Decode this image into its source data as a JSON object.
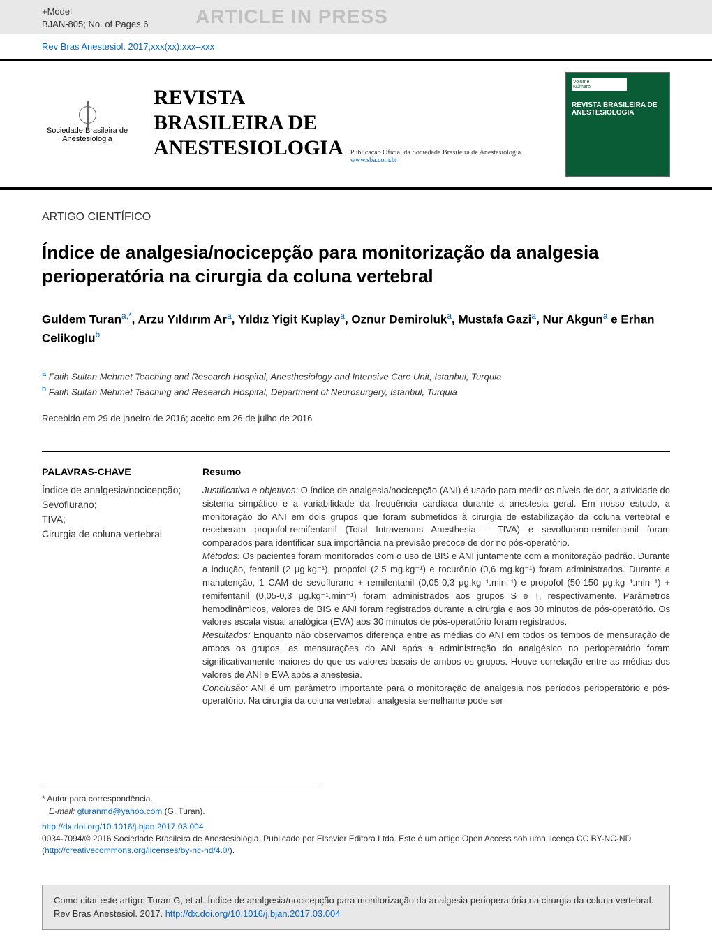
{
  "header": {
    "model_line1": "+Model",
    "model_line2": "BJAN-805;   No. of Pages 6",
    "article_in_press": "ARTICLE IN PRESS",
    "citation": "Rev Bras Anestesiol. 2017;xxx(xx):xxx–xxx",
    "society_name": "Sociedade Brasileira de Anestesiologia",
    "journal_title_line1": "REVISTA",
    "journal_title_line2": "BRASILEIRA DE",
    "journal_title_line3": "ANESTESIOLOGIA",
    "journal_subtitle": "Publicação Oficial da Sociedade Brasileira de Anestesiologia",
    "journal_url": "www.sba.com.br",
    "cover_title": "REVISTA BRASILEIRA DE ANESTESIOLOGIA"
  },
  "article": {
    "type": "ARTIGO CIENTÍFICO",
    "title": "Índice de analgesia/nocicepção para monitorização da analgesia perioperatória na cirurgia da coluna vertebral",
    "authors_html": "Guldem Turan<sup>a,*</sup>, Arzu Yıldırım Ar<sup>a</sup>, Yıldız Yigit Kuplay<sup>a</sup>, Oznur Demiroluk<sup>a</sup>, Mustafa Gazi<sup>a</sup>, Nur Akgun<sup>a</sup> e Erhan Celikoglu<sup>b</sup>",
    "affiliation_a": "Fatih Sultan Mehmet Teaching and Research Hospital, Anesthesiology and Intensive Care Unit, Istanbul, Turquia",
    "affiliation_b": "Fatih Sultan Mehmet Teaching and Research Hospital, Department of Neurosurgery, Istanbul, Turquia",
    "received": "Recebido em 29 de janeiro de 2016; aceito em 26 de julho de 2016"
  },
  "keywords": {
    "heading": "PALAVRAS-CHAVE",
    "items": "Índice de analgesia/nocicepção;\nSevoflurano;\nTIVA;\nCirurgia de coluna vertebral"
  },
  "abstract": {
    "heading": "Resumo",
    "justificativa_label": "Justificativa e objetivos:",
    "justificativa": " O índice de analgesia/nocicepção (ANI) é usado para medir os níveis de dor, a atividade do sistema simpático e a variabilidade da frequência cardíaca durante a anestesia geral. Em nosso estudo, a monitoração do ANI em dois grupos que foram submetidos à cirurgia de estabilização da coluna vertebral e receberam propofol-remifentanil (Total Intravenous Anesthesia – TIVA) e sevoflurano-remifentanil foram comparados para identificar sua importância na previsão precoce de dor no pós-operatório.",
    "metodos_label": "Métodos:",
    "metodos": " Os pacientes foram monitorados com o uso de BIS e ANI juntamente com a monitoração padrão. Durante a indução, fentanil (2 μg.kg⁻¹), propofol (2,5 mg.kg⁻¹) e rocurônio (0,6 mg.kg⁻¹) foram administrados. Durante a manutenção, 1 CAM de sevoflurano + remifentanil (0,05-0,3 μg.kg⁻¹.min⁻¹) e propofol (50-150 μg.kg⁻¹.min⁻¹) + remifentanil (0,05-0,3 μg.kg⁻¹.min⁻¹) foram administrados aos grupos S e T, respectivamente. Parâmetros hemodinâmicos, valores de BIS e ANI foram registrados durante a cirurgia e aos 30 minutos de pós-operatório. Os valores escala visual analógica (EVA) aos 30 minutos de pós-operatório foram registrados.",
    "resultados_label": "Resultados:",
    "resultados": " Enquanto não observamos diferença entre as médias do ANI em todos os tempos de mensuração de ambos os grupos, as mensurações do ANI após a administração do analgésico no perioperatório foram significativamente maiores do que os valores basais de ambos os grupos. Houve correlação entre as médias dos valores de ANI e EVA após a anestesia.",
    "conclusao_label": "Conclusão:",
    "conclusao": " ANI é um parâmetro importante para o monitoração de analgesia nos períodos perioperatório e pós-operatório. Na cirurgia da coluna vertebral, analgesia semelhante pode ser"
  },
  "footer": {
    "corresponding": "* Autor para correspondência.",
    "email_label": "E-mail:",
    "email": "gturanmd@yahoo.com",
    "email_author": " (G. Turan).",
    "doi": "http://dx.doi.org/10.1016/j.bjan.2017.03.004",
    "copyright": "0034-7094/© 2016 Sociedade Brasileira de Anestesiologia. Publicado por Elsevier Editora Ltda. Este é um artigo Open Access sob uma licença CC BY-NC-ND (",
    "cc_url": "http://creativecommons.org/licenses/by-nc-nd/4.0/",
    "copyright_end": ").",
    "citation_box_text": "Como citar este artigo: Turan G, et al. Índice de analgesia/nocicepção para monitorização da analgesia perioperatória na cirurgia da coluna vertebral. Rev Bras Anestesiol. 2017. ",
    "citation_box_url": "http://dx.doi.org/10.1016/j.bjan.2017.03.004"
  },
  "colors": {
    "link": "#0066cc",
    "text": "#333333",
    "band_border": "#000000",
    "gray_bg": "#e8e8e8",
    "press_gray": "#c0c0c0",
    "cover_green": "#0a5c36"
  }
}
